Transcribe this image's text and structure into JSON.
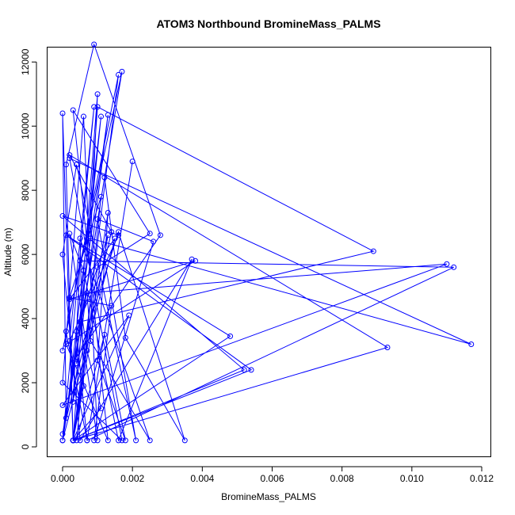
{
  "chart_data": {
    "type": "line",
    "title": "ATOM3 Northbound BromineMass_PALMS",
    "xlabel": "BromineMass_PALMS",
    "ylabel": "Altitude (m)",
    "xlim": [
      0,
      0.012
    ],
    "ylim": [
      0,
      12500
    ],
    "x_ticks": [
      0,
      0.002,
      0.004,
      0.006,
      0.008,
      0.01,
      0.012
    ],
    "x_tick_labels": [
      "0.000",
      "0.002",
      "0.004",
      "0.006",
      "0.008",
      "0.010",
      "0.012"
    ],
    "y_ticks": [
      0,
      2000,
      4000,
      6000,
      8000,
      10000,
      12000
    ],
    "y_tick_labels": [
      "0",
      "2000",
      "4000",
      "6000",
      "8000",
      "10000",
      "12000"
    ],
    "grid": false,
    "legend": "none",
    "series": [
      {
        "color": "#0000ff",
        "x": [
          0.0,
          0.0016,
          0.0003,
          0.0,
          0.0001,
          0.0011,
          0.0004,
          0.0028,
          0.0009,
          0.0001,
          0.0003,
          0.0052,
          0.0,
          0.0016,
          0.0002,
          0.0009,
          0.0,
          0.0013,
          0.0003,
          0.0005,
          0.0112,
          0.0007,
          0.0001,
          0.0017,
          0.0,
          0.0014,
          0.0002,
          0.0093,
          0.0003,
          0.001,
          0.0025,
          0.0003,
          0.0013,
          0.0001,
          0.0038,
          0.0002,
          0.0015,
          0.0,
          0.0012,
          0.0018,
          0.0035,
          0.0016,
          0.0004,
          0.001,
          0.0008,
          0.0117,
          0.0002,
          0.0017,
          0.0,
          0.0006,
          0.001,
          0.0005,
          0.0089,
          0.001,
          0.0003,
          0.0019,
          0.0,
          0.011,
          0.0007,
          0.0008,
          0.0025,
          0.0005,
          0.0006,
          0.0003,
          0.0054,
          0.0001,
          0.0048,
          0.0003,
          0.0011,
          0.0007,
          0.0002,
          0.0006,
          0.0016,
          0.0037,
          0.0005,
          0.0,
          0.0004,
          0.0021,
          0.001,
          0.0026,
          0.0009,
          0.0014,
          0.0002,
          0.0011,
          0.0004,
          0.0012,
          0.0018,
          0.001,
          0.0013,
          0.0003,
          0.0013,
          0.0004,
          0.0007,
          0.002
        ],
        "y": [
          3000,
          11600,
          200,
          10400,
          900,
          10300,
          2800,
          6600,
          12550,
          8800,
          200,
          2400,
          7200,
          6600,
          3300,
          10600,
          200,
          10350,
          1400,
          5800,
          5600,
          200,
          3600,
          11700,
          400,
          6700,
          9100,
          3100,
          200,
          5600,
          6650,
          10500,
          200,
          3200,
          5800,
          4600,
          6500,
          200,
          8400,
          3400,
          200,
          6700,
          2600,
          11000,
          6500,
          3200,
          9000,
          200,
          2000,
          10300,
          200,
          3900,
          6100,
          10600,
          200,
          4100,
          1300,
          5700,
          4800,
          3300,
          200,
          6500,
          1900,
          200,
          2400,
          6600,
          3450,
          200,
          1200,
          3000,
          6650,
          5500,
          200,
          5850,
          200,
          6000,
          8800,
          200,
          7100,
          6400,
          200,
          4400,
          4650,
          7800,
          200,
          3500,
          200,
          2700,
          7300,
          200,
          6600,
          3600,
          200,
          8900
        ]
      }
    ]
  }
}
